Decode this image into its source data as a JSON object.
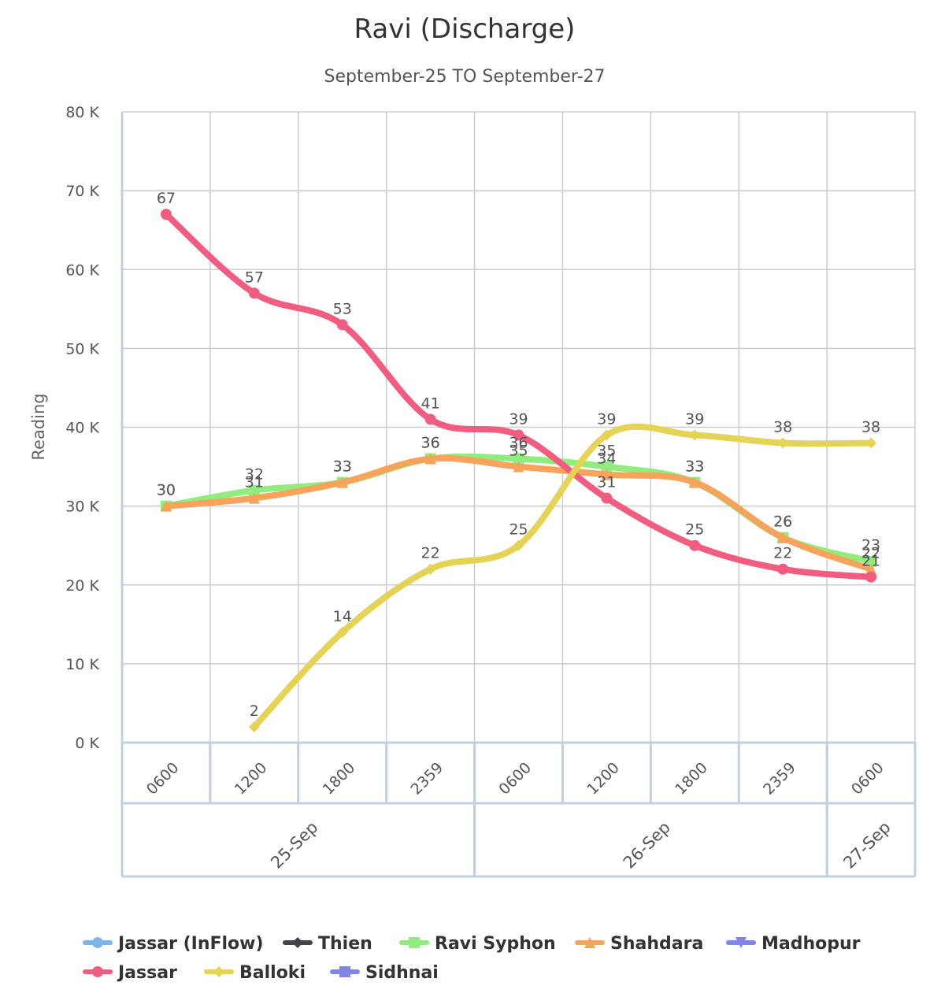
{
  "chart_data": {
    "type": "line",
    "title": "Ravi (Discharge)",
    "subtitle": "September-25  TO  September-27",
    "ylabel": "Reading",
    "ylim": [
      0,
      80000
    ],
    "yticks": [
      {
        "value": 0,
        "label": "0 K"
      },
      {
        "value": 10000,
        "label": "10 K"
      },
      {
        "value": 20000,
        "label": "20 K"
      },
      {
        "value": 30000,
        "label": "30 K"
      },
      {
        "value": 40000,
        "label": "40 K"
      },
      {
        "value": 50000,
        "label": "50 K"
      },
      {
        "value": 60000,
        "label": "60 K"
      },
      {
        "value": 70000,
        "label": "70 K"
      },
      {
        "value": 80000,
        "label": "80 K"
      }
    ],
    "categories": [
      "0600",
      "1200",
      "1800",
      "2359",
      "0600",
      "1200",
      "1800",
      "2359",
      "0600"
    ],
    "date_groups": [
      {
        "label": "25-Sep",
        "count": 4
      },
      {
        "label": "26-Sep",
        "count": 4
      },
      {
        "label": "27-Sep",
        "count": 1
      }
    ],
    "grid": true,
    "legend_position": "bottom",
    "series": [
      {
        "name": "Jassar (InFlow)",
        "color": "#7cb5ec",
        "marker": "circle",
        "values": [
          null,
          null,
          null,
          null,
          null,
          null,
          null,
          null,
          null
        ],
        "labels": []
      },
      {
        "name": "Thien",
        "color": "#434348",
        "marker": "diamond",
        "values": [
          null,
          null,
          null,
          null,
          null,
          null,
          null,
          null,
          null
        ],
        "labels": []
      },
      {
        "name": "Ravi Syphon",
        "color": "#90ed7d",
        "marker": "square",
        "values": [
          30000,
          32000,
          33000,
          36000,
          36000,
          35000,
          33000,
          26000,
          23000
        ],
        "labels": [
          "30",
          "32",
          "33",
          "36",
          "36",
          "35",
          "33",
          "26",
          "23"
        ]
      },
      {
        "name": "Shahdara",
        "color": "#f7a35c",
        "marker": "triangle",
        "values": [
          30000,
          31000,
          33000,
          36000,
          35000,
          34000,
          33000,
          26000,
          22000
        ],
        "labels": [
          "30",
          "31",
          "33",
          "36",
          "35",
          "34",
          "33",
          "26",
          "22"
        ]
      },
      {
        "name": "Madhopur",
        "color": "#8085e9",
        "marker": "triangle-down",
        "values": [
          null,
          null,
          null,
          null,
          null,
          null,
          null,
          null,
          null
        ],
        "labels": []
      },
      {
        "name": "Jassar",
        "color": "#f15c80",
        "marker": "circle",
        "values": [
          67000,
          57000,
          53000,
          41000,
          39000,
          31000,
          25000,
          22000,
          21000
        ],
        "labels": [
          "67",
          "57",
          "53",
          "41",
          "39",
          "31",
          "25",
          "22",
          "21"
        ]
      },
      {
        "name": "Balloki",
        "color": "#e4d354",
        "marker": "diamond",
        "values": [
          null,
          2000,
          14000,
          22000,
          25000,
          39000,
          39000,
          38000,
          38000
        ],
        "labels": [
          "",
          "2",
          "14",
          "22",
          "25",
          "39",
          "39",
          "38",
          "38"
        ]
      },
      {
        "name": "Sidhnai",
        "color": "#8085e8",
        "marker": "square",
        "values": [
          null,
          null,
          null,
          null,
          null,
          null,
          null,
          null,
          null
        ],
        "labels": []
      }
    ]
  }
}
